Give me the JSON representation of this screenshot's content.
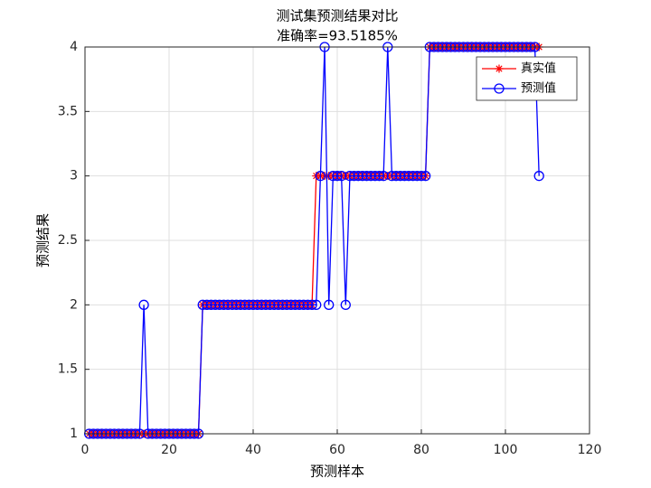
{
  "chart_data": {
    "type": "line",
    "title": "测试集预测结果对比",
    "subtitle": "准确率=93.5185%",
    "x_label": "预测样本",
    "y_label": "预测结果",
    "x": [
      1,
      2,
      3,
      4,
      5,
      6,
      7,
      8,
      9,
      10,
      11,
      12,
      13,
      14,
      15,
      16,
      17,
      18,
      19,
      20,
      21,
      22,
      23,
      24,
      25,
      26,
      27,
      28,
      29,
      30,
      31,
      32,
      33,
      34,
      35,
      36,
      37,
      38,
      39,
      40,
      41,
      42,
      43,
      44,
      45,
      46,
      47,
      48,
      49,
      50,
      51,
      52,
      53,
      54,
      55,
      56,
      57,
      58,
      59,
      60,
      61,
      62,
      63,
      64,
      65,
      66,
      67,
      68,
      69,
      70,
      71,
      72,
      73,
      74,
      75,
      76,
      77,
      78,
      79,
      80,
      81,
      82,
      83,
      84,
      85,
      86,
      87,
      88,
      89,
      90,
      91,
      92,
      93,
      94,
      95,
      96,
      97,
      98,
      99,
      100,
      101,
      102,
      103,
      104,
      105,
      106,
      107,
      108
    ],
    "series": [
      {
        "name": "真实值",
        "color": "#ff0000",
        "marker": "star",
        "values": [
          1,
          1,
          1,
          1,
          1,
          1,
          1,
          1,
          1,
          1,
          1,
          1,
          1,
          1,
          1,
          1,
          1,
          1,
          1,
          1,
          1,
          1,
          1,
          1,
          1,
          1,
          1,
          2,
          2,
          2,
          2,
          2,
          2,
          2,
          2,
          2,
          2,
          2,
          2,
          2,
          2,
          2,
          2,
          2,
          2,
          2,
          2,
          2,
          2,
          2,
          2,
          2,
          2,
          2,
          3,
          3,
          3,
          3,
          3,
          3,
          3,
          3,
          3,
          3,
          3,
          3,
          3,
          3,
          3,
          3,
          3,
          3,
          3,
          3,
          3,
          3,
          3,
          3,
          3,
          3,
          3,
          4,
          4,
          4,
          4,
          4,
          4,
          4,
          4,
          4,
          4,
          4,
          4,
          4,
          4,
          4,
          4,
          4,
          4,
          4,
          4,
          4,
          4,
          4,
          4,
          4,
          4,
          4
        ]
      },
      {
        "name": "预测值",
        "color": "#0000ff",
        "marker": "circle",
        "values": [
          1,
          1,
          1,
          1,
          1,
          1,
          1,
          1,
          1,
          1,
          1,
          1,
          1,
          2,
          1,
          1,
          1,
          1,
          1,
          1,
          1,
          1,
          1,
          1,
          1,
          1,
          1,
          2,
          2,
          2,
          2,
          2,
          2,
          2,
          2,
          2,
          2,
          2,
          2,
          2,
          2,
          2,
          2,
          2,
          2,
          2,
          2,
          2,
          2,
          2,
          2,
          2,
          2,
          2,
          2,
          3,
          4,
          2,
          3,
          3,
          3,
          2,
          3,
          3,
          3,
          3,
          3,
          3,
          3,
          3,
          3,
          4,
          3,
          3,
          3,
          3,
          3,
          3,
          3,
          3,
          3,
          4,
          4,
          4,
          4,
          4,
          4,
          4,
          4,
          4,
          4,
          4,
          4,
          4,
          4,
          4,
          4,
          4,
          4,
          4,
          4,
          4,
          4,
          4,
          4,
          4,
          4,
          3
        ]
      }
    ],
    "xlim": [
      0,
      120
    ],
    "ylim": [
      1,
      4
    ],
    "xticks": [
      0,
      20,
      40,
      60,
      80,
      100,
      120
    ],
    "yticks": [
      1,
      1.5,
      2,
      2.5,
      3,
      3.5,
      4
    ],
    "grid": true,
    "legend": "northeast"
  }
}
